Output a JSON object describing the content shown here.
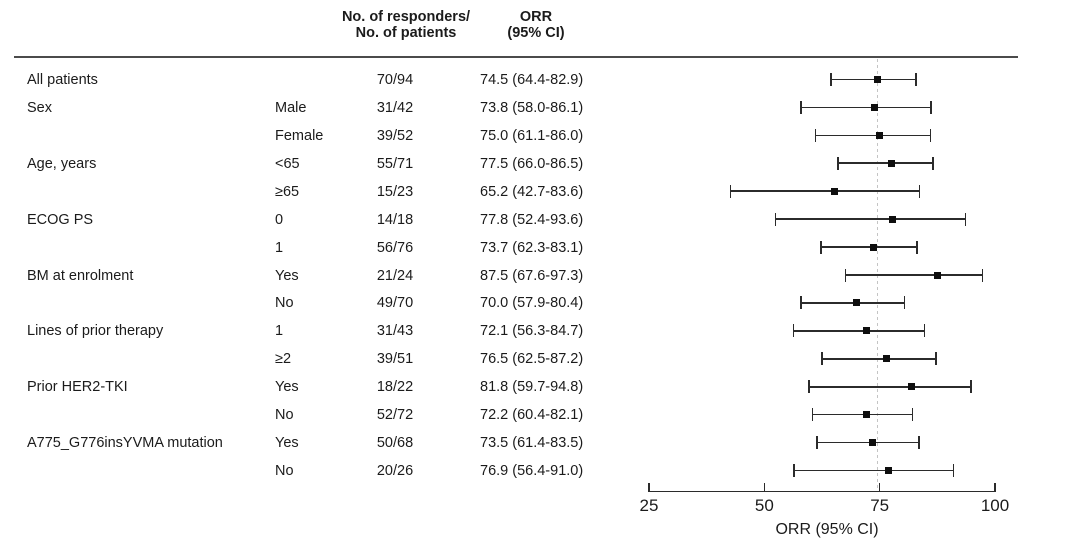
{
  "figure": {
    "background": "#ffffff",
    "text_color": "#1b1b1b"
  },
  "header": {
    "responders_line1": "No. of responders/",
    "responders_line2": "No. of patients",
    "orr_line1": "ORR",
    "orr_line2": "(95% CI)"
  },
  "chart_data": {
    "type": "forest",
    "xlabel": "ORR (95% CI)",
    "x_range": [
      25,
      100
    ],
    "x_ticks": [
      25,
      50,
      75,
      100
    ],
    "x_tick_labels": [
      "25",
      "50",
      "75",
      "100"
    ],
    "reference_line": 74.5,
    "reference_line_style": "dashed",
    "marker_shape": "square",
    "grid": false,
    "legend": false,
    "colors": {
      "marker": "#0e0e0e",
      "ci_line": "#2b2b2b",
      "axis": "#2b2b2b",
      "reference": "#c4c4c4",
      "separator": "#4b4b4b"
    },
    "rows": [
      {
        "group": "All patients",
        "subgroup": "",
        "n": "70/94",
        "orr_text": "74.5 (64.4-82.9)",
        "est": 74.5,
        "lo": 64.4,
        "hi": 82.9
      },
      {
        "group": "Sex",
        "subgroup": "Male",
        "n": "31/42",
        "orr_text": "73.8 (58.0-86.1)",
        "est": 73.8,
        "lo": 58.0,
        "hi": 86.1
      },
      {
        "group": "",
        "subgroup": "Female",
        "n": "39/52",
        "orr_text": "75.0 (61.1-86.0)",
        "est": 75.0,
        "lo": 61.1,
        "hi": 86.0
      },
      {
        "group": "Age, years",
        "subgroup": "<65",
        "n": "55/71",
        "orr_text": "77.5 (66.0-86.5)",
        "est": 77.5,
        "lo": 66.0,
        "hi": 86.5
      },
      {
        "group": "",
        "subgroup": "≥65",
        "n": "15/23",
        "orr_text": "65.2 (42.7-83.6)",
        "est": 65.2,
        "lo": 42.7,
        "hi": 83.6
      },
      {
        "group": "ECOG PS",
        "subgroup": "0",
        "n": "14/18",
        "orr_text": "77.8 (52.4-93.6)",
        "est": 77.8,
        "lo": 52.4,
        "hi": 93.6
      },
      {
        "group": "",
        "subgroup": "1",
        "n": "56/76",
        "orr_text": "73.7 (62.3-83.1)",
        "est": 73.7,
        "lo": 62.3,
        "hi": 83.1
      },
      {
        "group": "BM at enrolment",
        "subgroup": "Yes",
        "n": "21/24",
        "orr_text": "87.5 (67.6-97.3)",
        "est": 87.5,
        "lo": 67.6,
        "hi": 97.3
      },
      {
        "group": "",
        "subgroup": "No",
        "n": "49/70",
        "orr_text": "70.0 (57.9-80.4)",
        "est": 70.0,
        "lo": 57.9,
        "hi": 80.4
      },
      {
        "group": "Lines of prior therapy",
        "subgroup": "1",
        "n": "31/43",
        "orr_text": "72.1 (56.3-84.7)",
        "est": 72.1,
        "lo": 56.3,
        "hi": 84.7
      },
      {
        "group": "",
        "subgroup": "≥2",
        "n": "39/51",
        "orr_text": "76.5 (62.5-87.2)",
        "est": 76.5,
        "lo": 62.5,
        "hi": 87.2
      },
      {
        "group": "Prior HER2-TKI",
        "subgroup": "Yes",
        "n": "18/22",
        "orr_text": "81.8 (59.7-94.8)",
        "est": 81.8,
        "lo": 59.7,
        "hi": 94.8
      },
      {
        "group": "",
        "subgroup": "No",
        "n": "52/72",
        "orr_text": "72.2 (60.4-82.1)",
        "est": 72.2,
        "lo": 60.4,
        "hi": 82.1
      },
      {
        "group": "A775_G776insYVMA mutation",
        "subgroup": "Yes",
        "n": "50/68",
        "orr_text": "73.5 (61.4-83.5)",
        "est": 73.5,
        "lo": 61.4,
        "hi": 83.5
      },
      {
        "group": "",
        "subgroup": "No",
        "n": "20/26",
        "orr_text": "76.9 (56.4-91.0)",
        "est": 76.9,
        "lo": 56.4,
        "hi": 91.0
      }
    ]
  }
}
